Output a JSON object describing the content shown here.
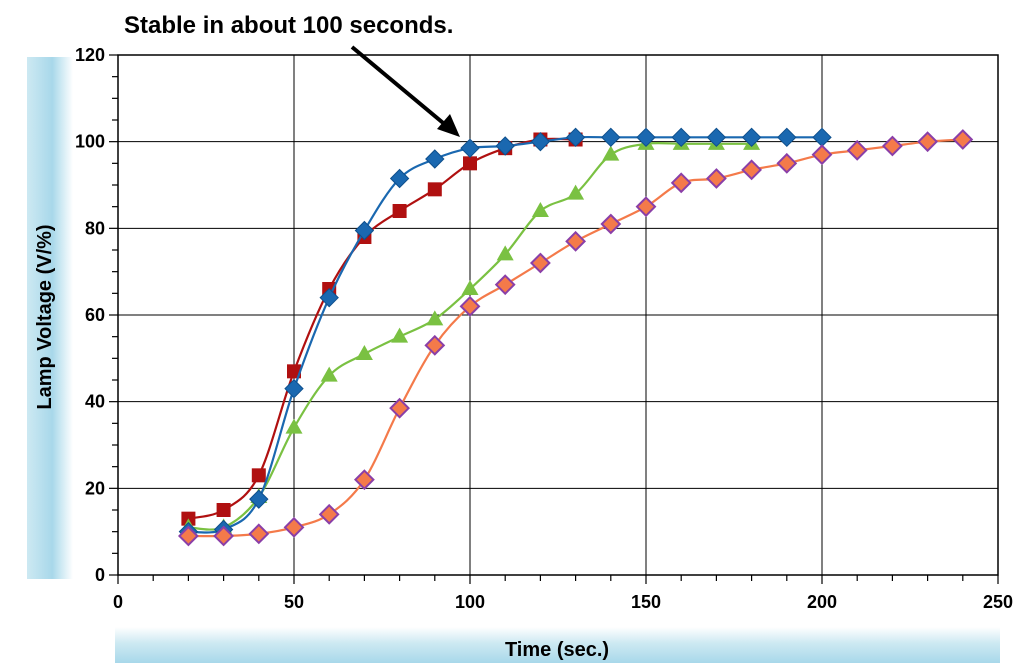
{
  "chart_data": {
    "type": "line",
    "title": "",
    "xlabel": "Time (sec.)",
    "ylabel": "Lamp Voltage (V/%)",
    "xlim": [
      0,
      250
    ],
    "ylim": [
      0,
      120
    ],
    "x_ticks": [
      0,
      50,
      100,
      150,
      200,
      250
    ],
    "y_ticks": [
      0,
      20,
      40,
      60,
      80,
      100,
      120
    ],
    "grid": true,
    "annotation": {
      "text": "Stable in about 100 seconds.",
      "points_to": [
        99,
        100
      ]
    },
    "series": [
      {
        "marker": "square",
        "color": "#b01010",
        "x": [
          20,
          30,
          40,
          50,
          60,
          70,
          80,
          90,
          100,
          110,
          120,
          130
        ],
        "y": [
          13,
          15,
          23,
          47,
          66,
          78,
          84,
          89,
          95,
          98.5,
          100.5,
          100.5
        ]
      },
      {
        "marker": "triangle",
        "color": "#7ac142",
        "x": [
          20,
          30,
          40,
          50,
          60,
          70,
          80,
          90,
          100,
          110,
          120,
          130,
          140,
          150,
          160,
          170,
          180
        ],
        "y": [
          11,
          11,
          18,
          34,
          46,
          51,
          55,
          59,
          66,
          74,
          84,
          88,
          97,
          99.5,
          99.5,
          99.5,
          99.5
        ]
      },
      {
        "marker": "diamond",
        "color": "#1a68b0",
        "x": [
          20,
          30,
          40,
          50,
          60,
          70,
          80,
          90,
          100,
          110,
          120,
          130,
          140,
          150,
          160,
          170,
          180,
          190,
          200
        ],
        "y": [
          10,
          10.5,
          17.5,
          43,
          64,
          79.5,
          91.5,
          96,
          98.5,
          99,
          100,
          101,
          101,
          101,
          101,
          101,
          101,
          101,
          101
        ]
      },
      {
        "marker": "diamond",
        "color": "#f47a4a",
        "x": [
          20,
          30,
          40,
          50,
          60,
          70,
          80,
          90,
          100,
          110,
          120,
          130,
          140,
          150,
          160,
          170,
          180,
          190,
          200,
          210,
          220,
          230,
          240
        ],
        "y": [
          9,
          9,
          9.5,
          11,
          14,
          22,
          38.5,
          53,
          62,
          67,
          72,
          77,
          81,
          85,
          90.5,
          91.5,
          93.5,
          95,
          97,
          98,
          99,
          100,
          100.5
        ]
      }
    ]
  }
}
